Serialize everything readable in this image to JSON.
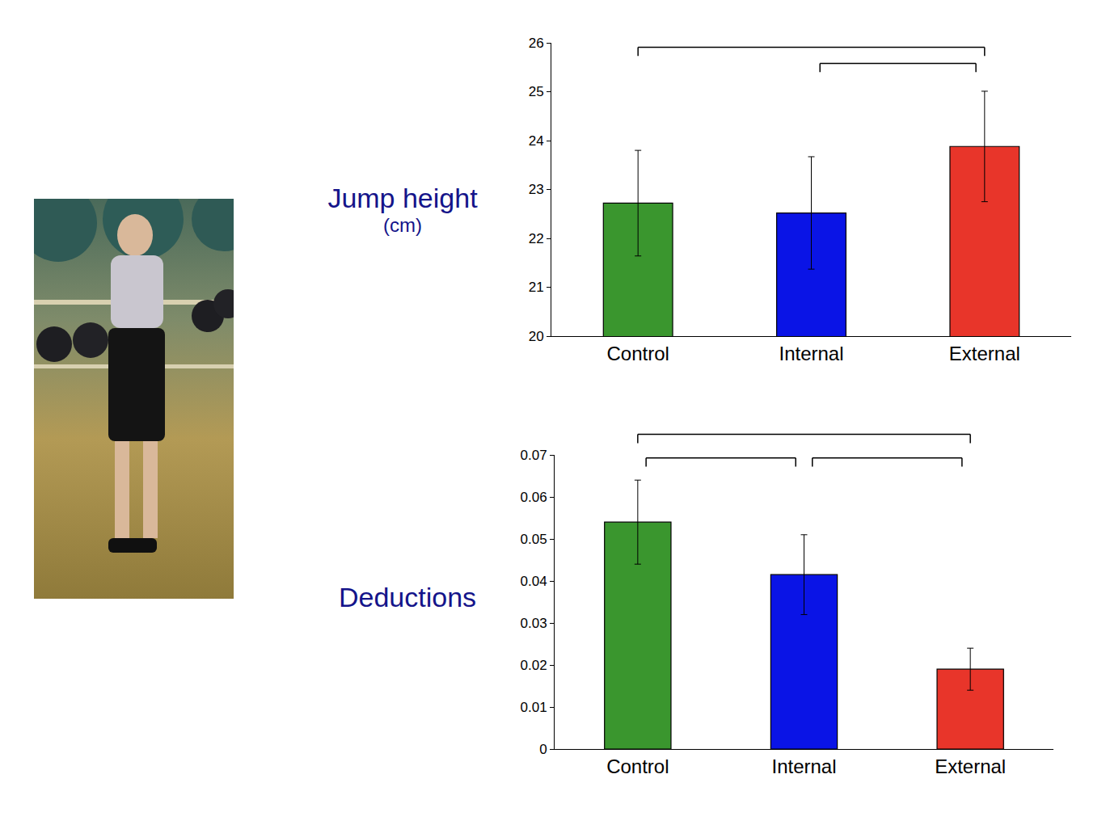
{
  "chart_data": [
    {
      "type": "bar",
      "ylabel": "Jump height (cm)",
      "categories": [
        "Control",
        "Internal",
        "External"
      ],
      "values": [
        22.72,
        22.52,
        23.88
      ],
      "error": [
        1.08,
        1.15,
        1.13
      ],
      "colors": [
        "#3a962e",
        "#0a14e6",
        "#e8352a"
      ],
      "ylim": [
        20,
        26
      ],
      "yticks": [
        20,
        21,
        22,
        23,
        24,
        25,
        26
      ],
      "significance": [
        [
          "Control",
          "External"
        ],
        [
          "Internal",
          "External"
        ]
      ]
    },
    {
      "type": "bar",
      "ylabel": "Deductions",
      "categories": [
        "Control",
        "Internal",
        "External"
      ],
      "values": [
        0.054,
        0.0415,
        0.019
      ],
      "error": [
        0.01,
        0.0095,
        0.005
      ],
      "colors": [
        "#3a962e",
        "#0a14e6",
        "#e8352a"
      ],
      "ylim": [
        0,
        0.07
      ],
      "yticks": [
        0,
        0.01,
        0.02,
        0.03,
        0.04,
        0.05,
        0.06,
        0.07
      ],
      "significance": [
        [
          "Control",
          "Internal"
        ],
        [
          "Control",
          "External"
        ],
        [
          "Internal",
          "External"
        ]
      ]
    }
  ]
}
